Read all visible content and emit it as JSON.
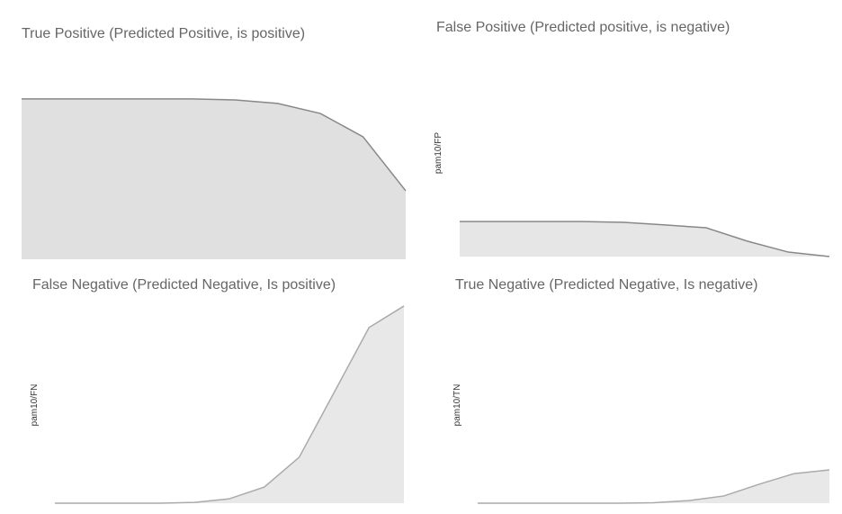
{
  "chart_data": [
    {
      "type": "area",
      "title": "True Positive (Predicted Positive, is positive)",
      "values": [
        81.7,
        81.7,
        81.7,
        81.7,
        81.7,
        81.2,
        79.4,
        74.3,
        62.4,
        34.9
      ],
      "ylim": [
        0,
        100
      ],
      "color": "#888888",
      "fill": "#e0e0e0"
    },
    {
      "type": "area",
      "title": "False Positive (Predicted positive, is negative)",
      "ylabel": "pam10/FP",
      "values": [
        17.3,
        17.3,
        17.3,
        17.3,
        16.9,
        15.6,
        14.2,
        7.6,
        2.2,
        0
      ],
      "ylim": [
        0,
        100
      ],
      "color": "#888888",
      "fill": "#e6e6e6"
    },
    {
      "type": "area",
      "title": "False Negative (Predicted Negative, Is positive)",
      "ylabel": "pam10/FN",
      "values": [
        0,
        0,
        0,
        0,
        0.4,
        2.2,
        8.0,
        22.8,
        54.9,
        87.1,
        97.8
      ],
      "ylim": [
        0,
        100
      ],
      "color": "#aaaaaa",
      "fill": "#e8e8e8"
    },
    {
      "type": "area",
      "title": "True Negative (Predicted Negative, Is negative)",
      "ylabel": "pam10/TN",
      "values": [
        0,
        0,
        0,
        0,
        0,
        0.2,
        1.3,
        3.6,
        9.4,
        14.7,
        16.5
      ],
      "ylim": [
        0,
        100
      ],
      "color": "#aaaaaa",
      "fill": "#e8e8e8"
    }
  ]
}
